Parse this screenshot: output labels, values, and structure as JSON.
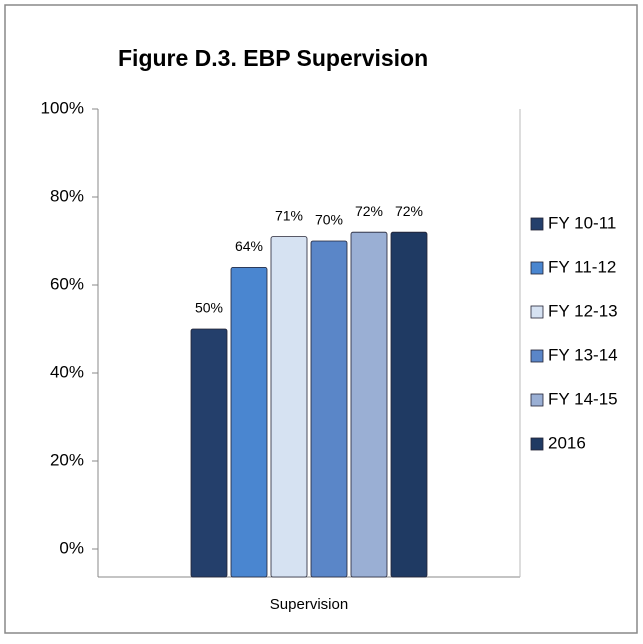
{
  "chart_data": {
    "type": "bar",
    "title": "Figure D.3. EBP Supervision",
    "categories": [
      "Supervision"
    ],
    "series": [
      {
        "name": "FY 10-11",
        "color": "#243f6b",
        "values": [
          50
        ],
        "value_labels": [
          "50%"
        ]
      },
      {
        "name": "FY 11-12",
        "color": "#4a86d0",
        "values": [
          64
        ],
        "value_labels": [
          "64%"
        ]
      },
      {
        "name": "FY 12-13",
        "color": "#d6e2f2",
        "values": [
          71
        ],
        "value_labels": [
          "71%"
        ]
      },
      {
        "name": "FY 13-14",
        "color": "#5a86c8",
        "values": [
          70
        ],
        "value_labels": [
          "70%"
        ]
      },
      {
        "name": "FY 14-15",
        "color": "#9aafd4",
        "values": [
          72
        ],
        "value_labels": [
          "72%"
        ]
      },
      {
        "name": "2016",
        "color": "#1f3a63",
        "values": [
          72
        ],
        "value_labels": [
          "72%"
        ]
      }
    ],
    "ylim": [
      0,
      100
    ],
    "yticks": [
      {
        "value": 0,
        "label": "0%"
      },
      {
        "value": 20,
        "label": "20%"
      },
      {
        "value": 40,
        "label": "40%"
      },
      {
        "value": 60,
        "label": "60%"
      },
      {
        "value": 80,
        "label": "80%"
      },
      {
        "value": 100,
        "label": "100%"
      }
    ],
    "legend": "right"
  }
}
